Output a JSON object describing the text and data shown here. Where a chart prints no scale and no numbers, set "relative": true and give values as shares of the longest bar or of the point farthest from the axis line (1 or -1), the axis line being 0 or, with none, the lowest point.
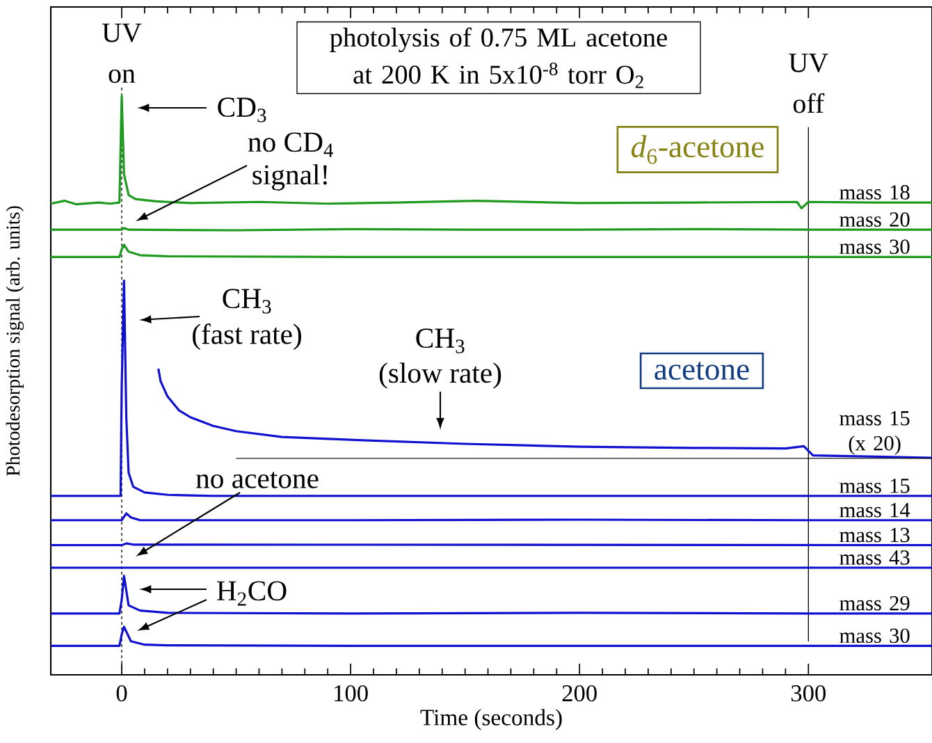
{
  "chart_data": {
    "type": "line",
    "relative": true,
    "title": "photolysis of 0.75 ML acetone at 200 K in 5x10$^{-8}$ torr O$_{2}$",
    "xlabel": "Time (seconds)",
    "ylabel": "Photodesorption signal (arb. units)",
    "xlim": [
      -31,
      354
    ],
    "xticks": [
      0,
      100,
      200,
      300
    ],
    "tick_labels": "x",
    "grid": false,
    "line_style": "solid",
    "marker": "none",
    "series": [
      {
        "name": "mass 18",
        "color": "#1e9a1e",
        "x": [
          -31,
          -25,
          -20,
          -10,
          -5,
          -1,
          0,
          1,
          3,
          6,
          15,
          30,
          60,
          90,
          120,
          155,
          200,
          250,
          295,
          297,
          300,
          330,
          354
        ],
        "values": [
          0.814,
          0.819,
          0.813,
          0.816,
          0.814,
          0.816,
          1.0,
          0.865,
          0.829,
          0.822,
          0.818,
          0.815,
          0.817,
          0.814,
          0.816,
          0.819,
          0.815,
          0.816,
          0.817,
          0.806,
          0.817,
          0.816,
          0.816
        ]
      },
      {
        "name": "mass 20",
        "color": "#1e9a1e",
        "x": [
          -31,
          0,
          1,
          3,
          50,
          100,
          150,
          200,
          250,
          300,
          354
        ],
        "values": [
          0.769,
          0.769,
          0.772,
          0.769,
          0.768,
          0.77,
          0.769,
          0.769,
          0.77,
          0.769,
          0.769
        ]
      },
      {
        "name": "mass 30",
        "color": "#1e9a1e",
        "x": [
          -31,
          -1,
          0,
          1,
          3,
          8,
          20,
          100,
          200,
          300,
          354
        ],
        "values": [
          0.722,
          0.722,
          0.735,
          0.743,
          0.731,
          0.725,
          0.723,
          0.722,
          0.722,
          0.722,
          0.722
        ]
      },
      {
        "name": "mass 15 (x 20)",
        "color": "#1010d0",
        "x": [
          16,
          17,
          20,
          25,
          30,
          40,
          50,
          70,
          100,
          150,
          200,
          250,
          290,
          298,
          302,
          354
        ],
        "values": [
          0.529,
          0.507,
          0.481,
          0.457,
          0.445,
          0.43,
          0.421,
          0.411,
          0.406,
          0.399,
          0.394,
          0.392,
          0.391,
          0.395,
          0.379,
          0.375
        ]
      },
      {
        "color": "#000000",
        "x": [
          50,
          354
        ],
        "values": [
          0.374,
          0.374
        ]
      },
      {
        "name": "mass 15",
        "color": "#1010d0",
        "x": [
          -31,
          -0.5,
          0,
          1,
          2,
          3,
          5,
          10,
          20,
          40,
          354
        ],
        "values": [
          0.309,
          0.309,
          0.5,
          0.681,
          0.445,
          0.349,
          0.325,
          0.315,
          0.311,
          0.309,
          0.309
        ]
      },
      {
        "name": "mass 14",
        "color": "#1010d0",
        "x": [
          -31,
          0,
          2,
          4,
          8,
          100,
          200,
          300,
          354
        ],
        "values": [
          0.267,
          0.267,
          0.279,
          0.272,
          0.267,
          0.267,
          0.268,
          0.267,
          0.267
        ]
      },
      {
        "name": "mass 13",
        "color": "#1010d0",
        "x": [
          -31,
          0,
          2,
          5,
          354
        ],
        "values": [
          0.224,
          0.224,
          0.227,
          0.225,
          0.224
        ]
      },
      {
        "name": "mass 43",
        "color": "#1010d0",
        "x": [
          -31,
          354
        ],
        "values": [
          0.185,
          0.185
        ]
      },
      {
        "name": "mass 29",
        "color": "#1010d0",
        "x": [
          -31,
          -1,
          0,
          1,
          3,
          8,
          20,
          100,
          200,
          300,
          354
        ],
        "values": [
          0.106,
          0.106,
          0.13,
          0.171,
          0.12,
          0.111,
          0.107,
          0.106,
          0.107,
          0.106,
          0.106
        ]
      },
      {
        "name": "mass 30",
        "color": "#1010d0",
        "x": [
          -31,
          -1,
          0,
          1,
          4,
          10,
          20,
          100,
          200,
          300,
          354
        ],
        "values": [
          0.05,
          0.05,
          0.07,
          0.083,
          0.058,
          0.052,
          0.051,
          0.05,
          0.05,
          0.05,
          0.05
        ]
      }
    ],
    "ref_lines": [
      {
        "axis": "x",
        "value": 0,
        "label": "UV on",
        "line_style": "dashed",
        "color": "#000000"
      },
      {
        "axis": "x",
        "value": 300,
        "label": "UV off",
        "line_style": "solid",
        "color": "#000000"
      }
    ],
    "annotations": [
      "CD$_{3}$",
      "no CD$_{4}$",
      "signal!",
      "CH$_{3}$",
      "(fast rate)",
      "CH$_{3}$",
      "(slow rate)",
      "no acetone",
      "H$_{2}$CO",
      "*d*$_{6}$-acetone",
      "acetone"
    ]
  }
}
